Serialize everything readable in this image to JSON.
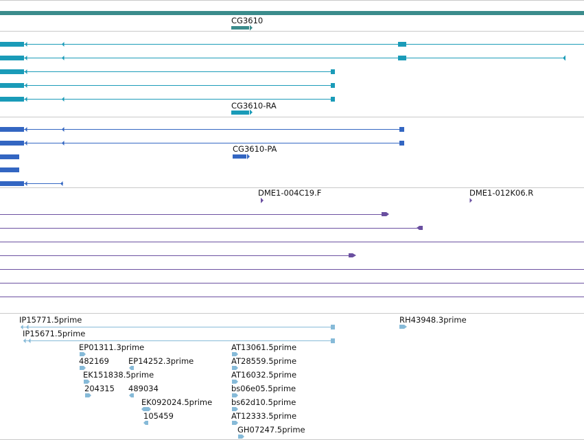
{
  "gene": {
    "label": "CG3610",
    "color": "#3b8c8c"
  },
  "transcripts": {
    "label": "CG3610-RA",
    "color": "#1a9bb8"
  },
  "proteins": {
    "label": "CG3610-PA",
    "color": "#3366c2"
  },
  "cdna": {
    "color": "#6a4fa0",
    "label_1": "DME1-004C19.F",
    "label_2": "DME1-012K06.R"
  },
  "ests": {
    "color": "#86bad8",
    "labels": [
      "IP15771.5prime",
      "IP15671.5prime",
      "RH43948.3prime",
      "EP01311.3prime",
      "482169",
      "EP14252.3prime",
      "EK151838.5prime",
      "204315",
      "489034",
      "EK092024.5prime",
      "105459",
      "AT13061.5prime",
      "AT28559.5prime",
      "AT16032.5prime",
      "bs06e05.5prime",
      "bs62d10.5prime",
      "AT12333.5prime",
      "GH07247.5prime"
    ]
  }
}
